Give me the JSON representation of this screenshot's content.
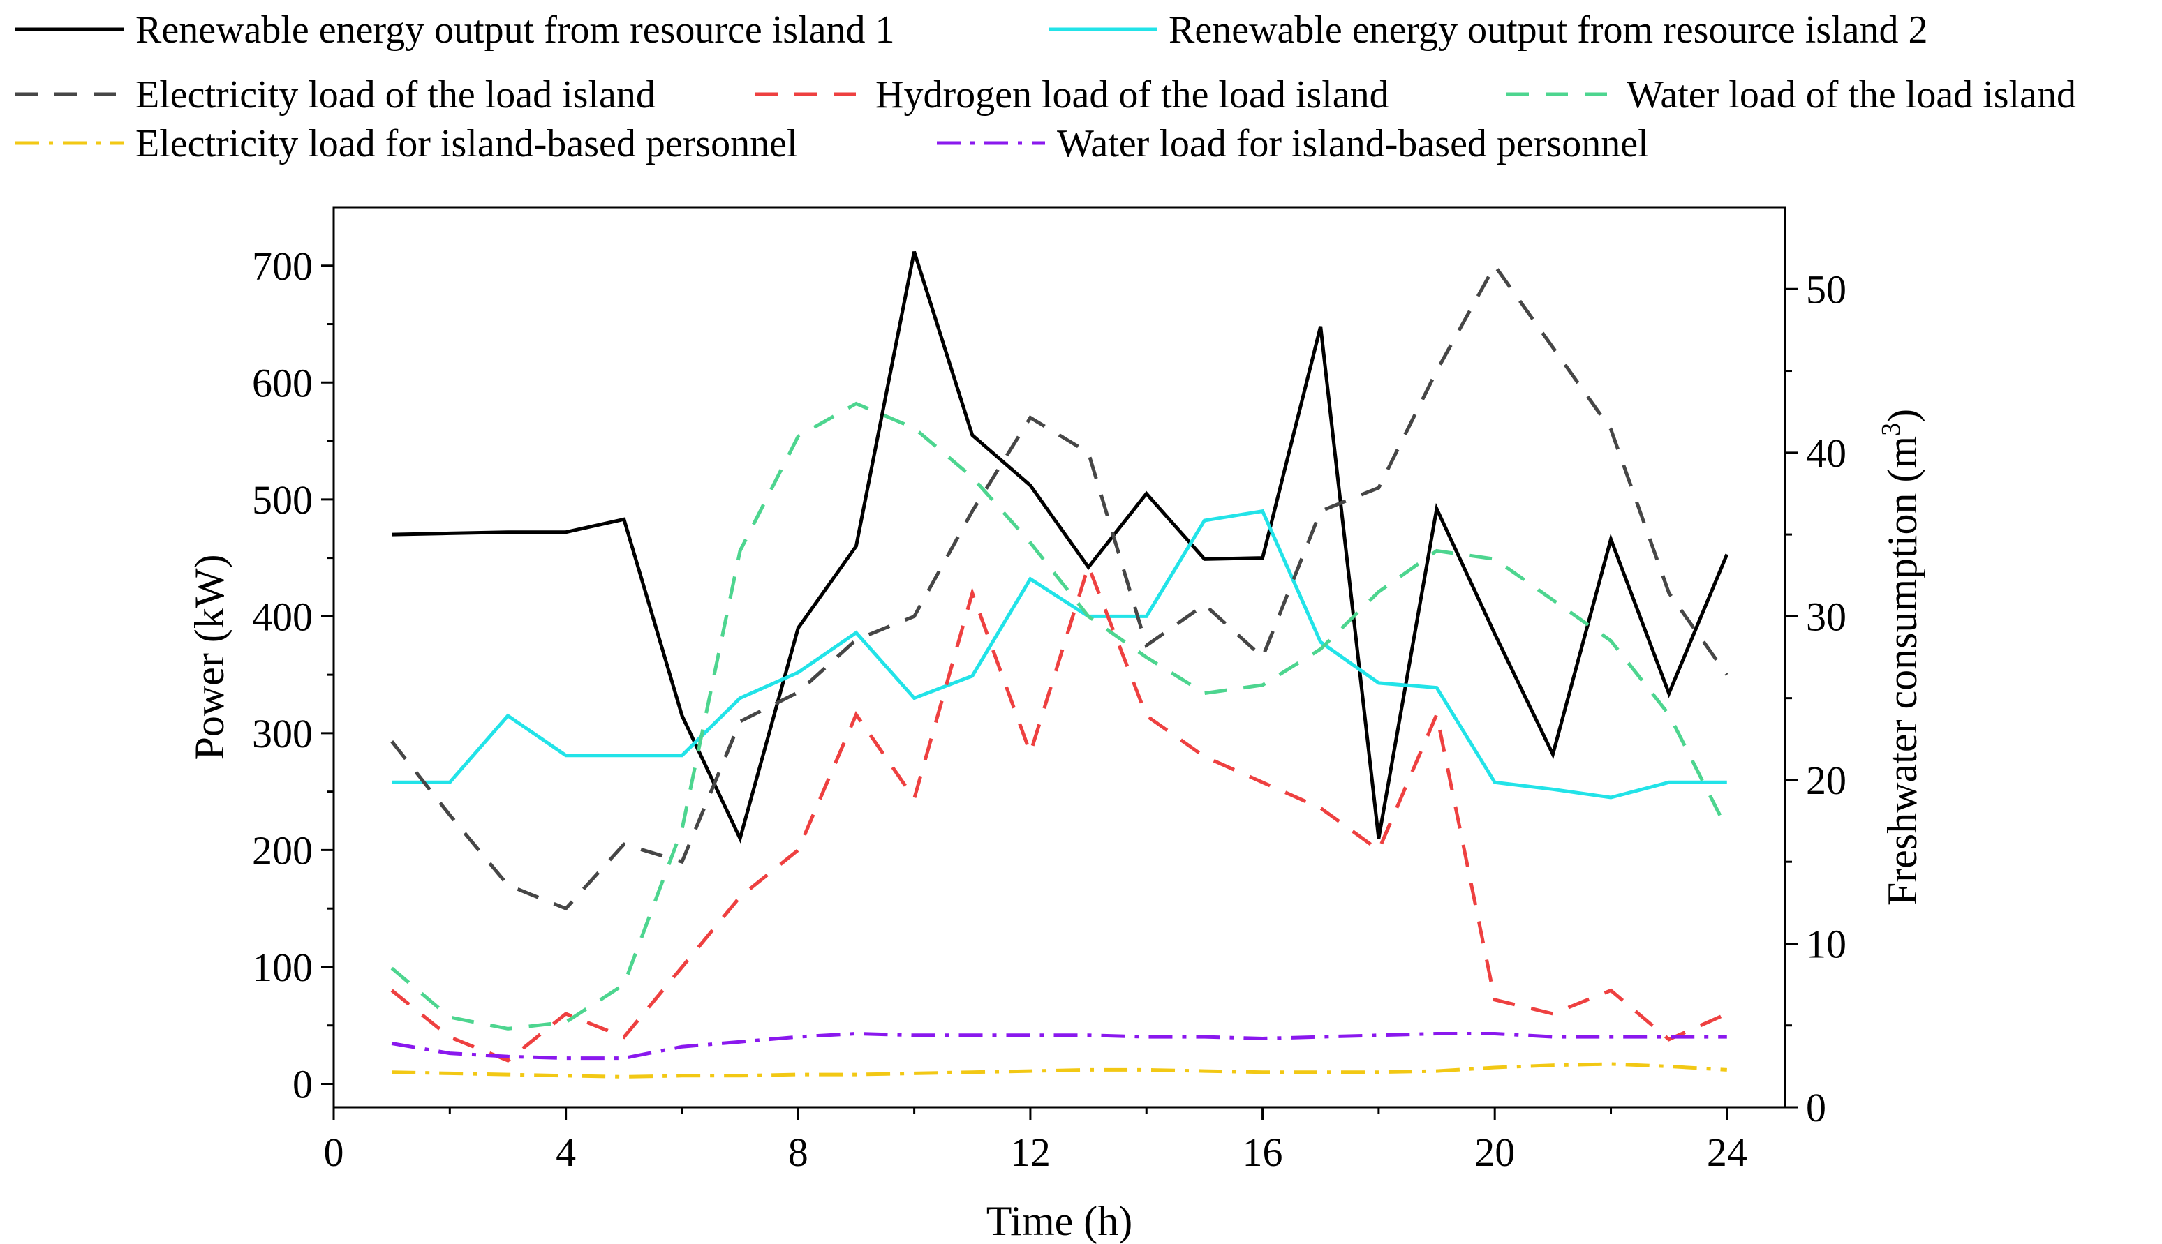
{
  "chart_data": {
    "type": "line",
    "title": "",
    "xlabel": "Time (h)",
    "ylabel": "Power (kW)",
    "y2label": "Freshwater consumption (m",
    "y2label_sup": "3",
    "y2label_end": ")",
    "xlim": [
      0,
      25
    ],
    "ylim": [
      -20,
      750
    ],
    "y2lim": [
      0,
      55
    ],
    "xticks": [
      0,
      4,
      8,
      12,
      16,
      20,
      24
    ],
    "xtick_labels": [
      "0",
      "4",
      "8",
      "12",
      "16",
      "20",
      "24"
    ],
    "yticks": [
      0,
      100,
      200,
      300,
      400,
      500,
      600,
      700
    ],
    "ytick_labels": [
      "0",
      "100",
      "200",
      "300",
      "400",
      "500",
      "600",
      "700"
    ],
    "y2ticks": [
      0,
      10,
      20,
      30,
      40,
      50
    ],
    "y2tick_labels": [
      "0",
      "10",
      "20",
      "30",
      "40",
      "50"
    ],
    "x": [
      1,
      2,
      3,
      4,
      5,
      6,
      7,
      8,
      9,
      10,
      11,
      12,
      13,
      14,
      15,
      16,
      17,
      18,
      19,
      20,
      21,
      22,
      23,
      24
    ],
    "series": [
      {
        "name": "Renewable energy output from resource island 1",
        "axis": "left",
        "color": "#000000",
        "dash": "solid",
        "values": [
          470,
          471,
          472,
          472,
          483,
          315,
          210,
          390,
          460,
          712,
          555,
          512,
          442,
          505,
          449,
          450,
          648,
          210,
          492,
          385,
          282,
          466,
          334,
          453
        ]
      },
      {
        "name": "Renewable energy output from resource island 2",
        "axis": "left",
        "color": "#22E3E8",
        "dash": "solid",
        "values": [
          258,
          258,
          315,
          281,
          281,
          281,
          330,
          352,
          386,
          330,
          349,
          432,
          400,
          400,
          482,
          490,
          378,
          343,
          339,
          258,
          252,
          245,
          258,
          258
        ]
      },
      {
        "name": "Electricity load of the load island",
        "axis": "left",
        "color": "#464646",
        "dash": "dash",
        "values": [
          293,
          230,
          170,
          150,
          205,
          190,
          310,
          335,
          380,
          400,
          490,
          570,
          540,
          375,
          410,
          365,
          490,
          510,
          610,
          700,
          630,
          560,
          420,
          350
        ]
      },
      {
        "name": "Hydrogen load of the load island",
        "axis": "left",
        "color": "#EE4040",
        "dash": "dash",
        "values": [
          80,
          40,
          20,
          60,
          40,
          100,
          160,
          200,
          316,
          244,
          420,
          283,
          443,
          315,
          280,
          258,
          236,
          200,
          316,
          72,
          60,
          80,
          38,
          60
        ]
      },
      {
        "name": "Water load of the load island",
        "axis": "right",
        "color": "#4DD58F",
        "dash": "dash",
        "values": [
          8.5,
          5.5,
          4.8,
          5.2,
          7.5,
          17,
          34,
          41,
          43,
          41.5,
          38.5,
          34.5,
          30,
          27.5,
          25.3,
          25.8,
          28,
          31.5,
          34,
          33.5,
          31,
          28.5,
          24,
          17
        ]
      },
      {
        "name": "Electricity load for island-based personnel",
        "axis": "left",
        "color": "#F2C814",
        "dash": "dashdot",
        "values": [
          10,
          9,
          8,
          7,
          6,
          7,
          7,
          8,
          8,
          9,
          10,
          11,
          12,
          12,
          11,
          10,
          10,
          10,
          11,
          14,
          16,
          17,
          15,
          12
        ]
      },
      {
        "name": "Water load for island-based personnel",
        "axis": "right",
        "color": "#8A18EE",
        "dash": "dashdot",
        "values": [
          3.9,
          3.3,
          3.1,
          3.0,
          3.0,
          3.7,
          4.0,
          4.3,
          4.5,
          4.4,
          4.4,
          4.4,
          4.4,
          4.3,
          4.3,
          4.2,
          4.3,
          4.4,
          4.5,
          4.5,
          4.3,
          4.3,
          4.3,
          4.3
        ]
      }
    ],
    "legend_position": "top"
  }
}
